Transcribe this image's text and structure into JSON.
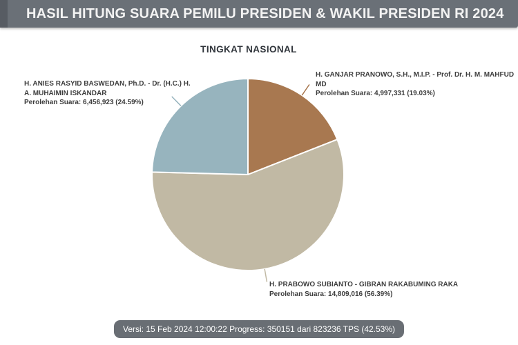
{
  "header": {
    "title": "HASIL HITUNG SUARA PEMILU PRESIDEN & WAKIL PRESIDEN RI 2024"
  },
  "chart_data": {
    "type": "pie",
    "title": "TINGKAT NASIONAL",
    "value_unit": "suara",
    "rotation": "clockwise-from-12-oclock",
    "series": [
      {
        "name": "H. GANJAR PRANOWO, S.H., M.I.P. - Prof. Dr. H. M. MAHFUD MD",
        "votes": 4997331,
        "pct": 19.03,
        "color": "#A87850",
        "label_lines": [
          "H. GANJAR PRANOWO, S.H., M.I.P. - Prof. Dr. H. M. MAHFUD MD",
          "Perolehan Suara: 4,997,331 (19.03%)"
        ]
      },
      {
        "name": "H. PRABOWO SUBIANTO - GIBRAN RAKABUMING RAKA",
        "votes": 14809016,
        "pct": 56.39,
        "color": "#C1B9A4",
        "label_lines": [
          "H. PRABOWO SUBIANTO - GIBRAN RAKABUMING RAKA",
          "Perolehan Suara: 14,809,016 (56.39%)"
        ]
      },
      {
        "name": "H. ANIES RASYID BASWEDAN, Ph.D. - Dr. (H.C.) H. A. MUHAIMIN ISKANDAR",
        "votes": 6456923,
        "pct": 24.59,
        "color": "#97B4BE",
        "label_lines": [
          "H. ANIES RASYID BASWEDAN, Ph.D. - Dr. (H.C.) H.",
          "A. MUHAIMIN ISKANDAR",
          "Perolehan Suara: 6,456,923 (24.59%)"
        ]
      }
    ]
  },
  "footer": {
    "status": "Versi: 15 Feb 2024 12:00:22 Progress: 350151 dari 823236 TPS (42.53%)"
  },
  "theme": {
    "header_bg": "#6A7077",
    "header_accent": "#575C63",
    "badge_bg": "#696E74",
    "label_text": "#3D3D3D",
    "slice_separator": "#FFFFFF"
  }
}
